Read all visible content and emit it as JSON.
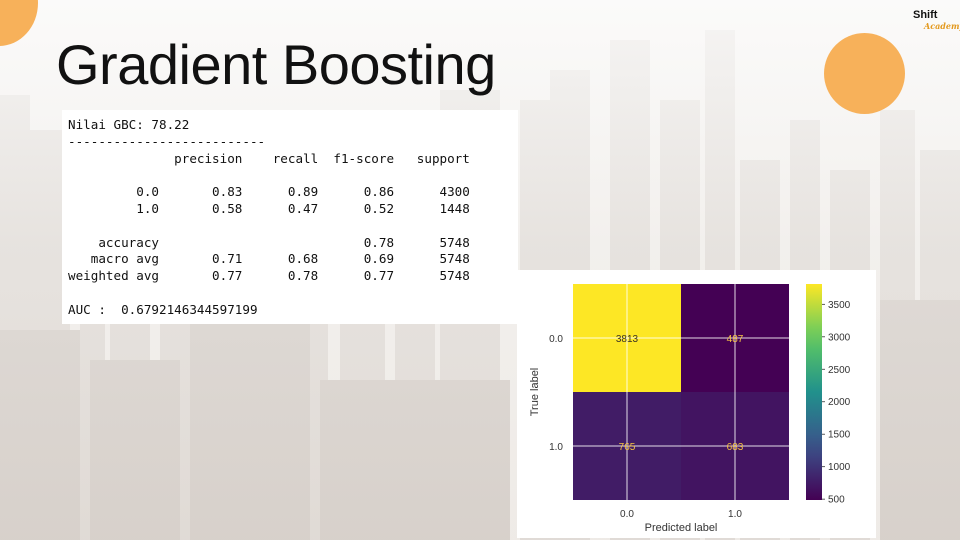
{
  "slide": {
    "title": "Gradient Boosting",
    "logo": {
      "main": "Shift",
      "sub": "Academy"
    },
    "colors": {
      "accent": "#f7b15a",
      "title": "#111111",
      "panel": "#ffffff"
    }
  },
  "report": {
    "lines": [
      "Nilai GBC: 78.22",
      "--------------------------",
      "              precision    recall  f1-score   support",
      "",
      "         0.0       0.83      0.89      0.86      4300",
      "         1.0       0.58      0.47      0.52      1448",
      "",
      "    accuracy                           0.78      5748",
      "   macro avg       0.71      0.68      0.69      5748",
      "weighted avg       0.77      0.78      0.77      5748",
      "",
      "AUC :  0.6792146344597199"
    ]
  },
  "chart_data": {
    "type": "heatmap",
    "x_categories": [
      "0.0",
      "1.0"
    ],
    "y_categories": [
      "0.0",
      "1.0"
    ],
    "values": [
      [
        3813,
        487
      ],
      [
        765,
        683
      ]
    ],
    "xlabel": "Predicted label",
    "ylabel": "True label",
    "colormap": "viridis",
    "colorbar": {
      "min": 487,
      "max": 3813,
      "ticks": [
        500,
        1000,
        1500,
        2000,
        2500,
        3000,
        3500
      ]
    },
    "grid": true,
    "annotation_color": "#f5c242"
  }
}
